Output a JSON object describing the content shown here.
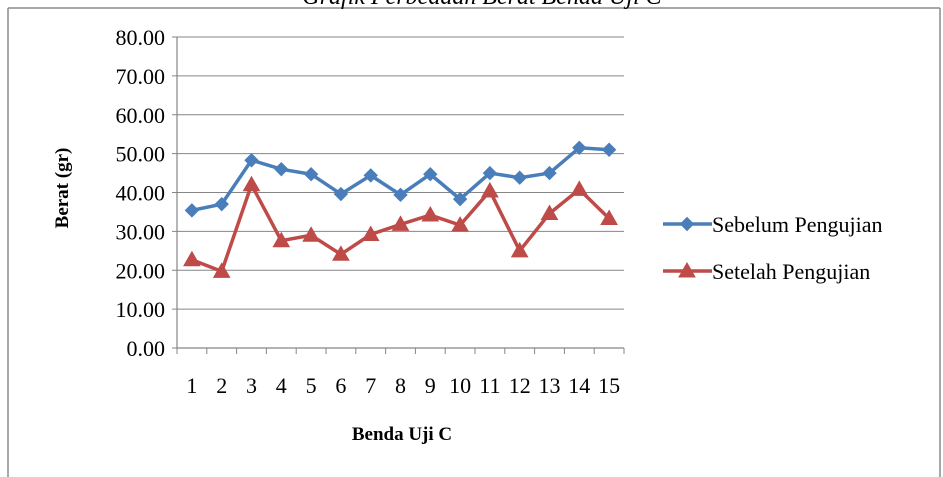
{
  "chart_data": {
    "type": "line",
    "title": "Grafik Perbedaan Berat Benda Uji C",
    "xlabel": "Benda Uji C",
    "ylabel": "Berat (gr)",
    "ylim": [
      0,
      80
    ],
    "yticks": [
      "0.00",
      "10.00",
      "20.00",
      "30.00",
      "40.00",
      "50.00",
      "60.00",
      "70.00",
      "80.00"
    ],
    "categories": [
      "1",
      "2",
      "3",
      "4",
      "5",
      "6",
      "7",
      "8",
      "9",
      "10",
      "11",
      "12",
      "13",
      "14",
      "15"
    ],
    "grid": true,
    "legend_position": "right",
    "series": [
      {
        "name": "Sebelum Pengujian",
        "color": "#4a7ebb",
        "marker": "diamond",
        "values": [
          35.4,
          37.0,
          48.3,
          46.0,
          44.7,
          39.6,
          44.4,
          39.4,
          44.7,
          38.3,
          45.0,
          43.8,
          45.0,
          51.5,
          51.0
        ]
      },
      {
        "name": "Setelah Pengujian",
        "color": "#be4b48",
        "marker": "triangle",
        "values": [
          22.7,
          19.7,
          42.0,
          27.6,
          29.0,
          24.1,
          29.2,
          31.8,
          34.2,
          31.6,
          40.4,
          25.0,
          34.6,
          40.8,
          33.3
        ]
      }
    ]
  }
}
